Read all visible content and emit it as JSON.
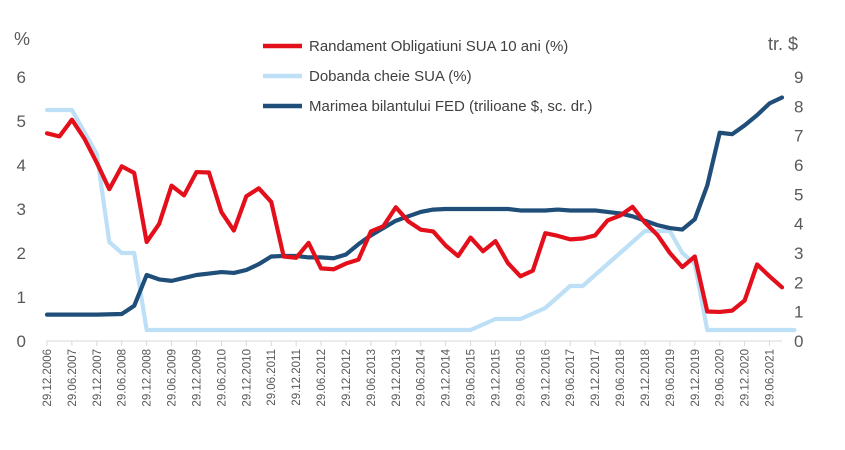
{
  "chart_data": {
    "type": "line",
    "left_axis_unit": "%",
    "right_axis_unit": "tr. $",
    "ylim_left": [
      0,
      6
    ],
    "ylim_right": [
      0,
      9
    ],
    "left_ticks": [
      "0",
      "1",
      "2",
      "3",
      "4",
      "5",
      "6"
    ],
    "right_ticks": [
      "0",
      "1",
      "2",
      "3",
      "4",
      "5",
      "6",
      "7",
      "8",
      "9"
    ],
    "x_labels": [
      "29.12.2006",
      "29.06.2007",
      "29.12.2007",
      "29.06.2008",
      "29.12.2008",
      "29.06.2009",
      "29.12.2009",
      "29.06.2010",
      "29.12.2010",
      "29.06.2011",
      "29.12.2011",
      "29.06.2012",
      "29.12.2012",
      "29.06.2013",
      "29.12.2013",
      "29.06.2014",
      "29.12.2014",
      "29.06.2015",
      "29.12.2015",
      "29.06.2016",
      "29.12.2016",
      "29.06.2017",
      "29.12.2017",
      "29.06.2018",
      "29.12.2018",
      "29.06.2019",
      "29.12.2019",
      "29.06.2020",
      "29.12.2020",
      "29.06.2021"
    ],
    "grid": false,
    "legend_position": "top-center",
    "series": [
      {
        "name": "Randament Obligatiuni SUA 10 ani (%)",
        "axis": "left",
        "color": "#e3101b",
        "x": [
          2006.99,
          2007.24,
          2007.49,
          2007.74,
          2007.99,
          2008.24,
          2008.49,
          2008.74,
          2008.99,
          2009.24,
          2009.49,
          2009.74,
          2009.99,
          2010.24,
          2010.49,
          2010.74,
          2010.99,
          2011.24,
          2011.49,
          2011.74,
          2011.99,
          2012.24,
          2012.49,
          2012.74,
          2012.99,
          2013.24,
          2013.49,
          2013.74,
          2013.99,
          2014.24,
          2014.49,
          2014.74,
          2014.99,
          2015.24,
          2015.49,
          2015.74,
          2015.99,
          2016.24,
          2016.49,
          2016.74,
          2016.99,
          2017.24,
          2017.49,
          2017.74,
          2017.99,
          2018.24,
          2018.49,
          2018.74,
          2018.99,
          2019.24,
          2019.49,
          2019.74,
          2019.99,
          2020.24,
          2020.49,
          2020.74,
          2020.99,
          2021.24,
          2021.49,
          2021.74
        ],
        "y": [
          4.72,
          4.65,
          5.03,
          4.6,
          4.05,
          3.45,
          3.97,
          3.82,
          2.25,
          2.66,
          3.53,
          3.31,
          3.84,
          3.83,
          2.93,
          2.51,
          3.29,
          3.47,
          3.16,
          1.92,
          1.89,
          2.23,
          1.65,
          1.63,
          1.76,
          1.85,
          2.49,
          2.61,
          3.04,
          2.72,
          2.53,
          2.49,
          2.17,
          1.93,
          2.35,
          2.04,
          2.27,
          1.77,
          1.47,
          1.6,
          2.45,
          2.39,
          2.31,
          2.33,
          2.4,
          2.74,
          2.85,
          3.05,
          2.69,
          2.41,
          2.0,
          1.68,
          1.92,
          0.67,
          0.66,
          0.69,
          0.92,
          1.74,
          1.47,
          1.22
        ]
      },
      {
        "name": "Dobanda cheie SUA (%)",
        "axis": "left",
        "color": "#bde0f6",
        "x": [
          2006.99,
          2007.49,
          2007.74,
          2007.99,
          2008.24,
          2008.49,
          2008.74,
          2008.99,
          2009.24,
          2015.49,
          2015.99,
          2016.49,
          2016.99,
          2017.24,
          2017.49,
          2017.74,
          2017.99,
          2018.24,
          2018.49,
          2018.74,
          2018.99,
          2019.24,
          2019.49,
          2019.74,
          2019.99,
          2020.24,
          2020.49,
          2021.99
        ],
        "y": [
          5.25,
          5.25,
          4.75,
          4.25,
          2.25,
          2.0,
          2.0,
          0.25,
          0.25,
          0.25,
          0.5,
          0.5,
          0.75,
          1.0,
          1.25,
          1.25,
          1.5,
          1.75,
          2.0,
          2.25,
          2.5,
          2.5,
          2.5,
          2.0,
          1.75,
          0.25,
          0.25,
          0.25
        ]
      },
      {
        "name": "Marimea bilantului FED (trilioane $, sc. dr.)",
        "axis": "right",
        "color": "#1f4e79",
        "x": [
          2006.99,
          2007.49,
          2007.99,
          2008.49,
          2008.74,
          2008.99,
          2009.24,
          2009.49,
          2009.74,
          2009.99,
          2010.24,
          2010.49,
          2010.74,
          2010.99,
          2011.24,
          2011.49,
          2011.74,
          2011.99,
          2012.24,
          2012.49,
          2012.74,
          2012.99,
          2013.24,
          2013.49,
          2013.74,
          2013.99,
          2014.24,
          2014.49,
          2014.74,
          2014.99,
          2015.24,
          2015.49,
          2015.74,
          2015.99,
          2016.24,
          2016.49,
          2016.74,
          2016.99,
          2017.24,
          2017.49,
          2017.74,
          2017.99,
          2018.24,
          2018.49,
          2018.74,
          2018.99,
          2019.24,
          2019.49,
          2019.74,
          2019.99,
          2020.24,
          2020.49,
          2020.74,
          2020.99,
          2021.24,
          2021.49,
          2021.74
        ],
        "y": [
          0.9,
          0.9,
          0.9,
          0.92,
          1.2,
          2.25,
          2.1,
          2.05,
          2.15,
          2.25,
          2.3,
          2.35,
          2.32,
          2.42,
          2.62,
          2.88,
          2.9,
          2.9,
          2.85,
          2.85,
          2.82,
          2.95,
          3.3,
          3.6,
          3.85,
          4.1,
          4.25,
          4.4,
          4.48,
          4.5,
          4.5,
          4.5,
          4.5,
          4.5,
          4.5,
          4.45,
          4.45,
          4.45,
          4.48,
          4.45,
          4.45,
          4.45,
          4.4,
          4.35,
          4.25,
          4.1,
          3.95,
          3.85,
          3.8,
          4.15,
          5.3,
          7.1,
          7.05,
          7.35,
          7.7,
          8.1,
          8.3
        ]
      }
    ]
  }
}
